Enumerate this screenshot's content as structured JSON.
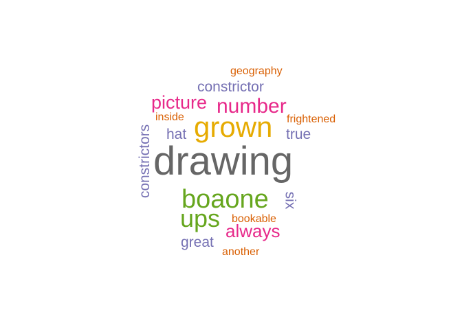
{
  "word_cloud": {
    "words": [
      {
        "text": "drawing",
        "color": "#666666"
      },
      {
        "text": "grown",
        "color": "#E6AB02"
      },
      {
        "text": "boaone",
        "color": "#66A61E"
      },
      {
        "text": "number",
        "color": "#E7298A"
      },
      {
        "text": "ups",
        "color": "#66A61E"
      },
      {
        "text": "picture",
        "color": "#E7298A"
      },
      {
        "text": "always",
        "color": "#E7298A"
      },
      {
        "text": "constrictor",
        "color": "#7570B3"
      },
      {
        "text": "constrictors",
        "color": "#7570B3"
      },
      {
        "text": "hat",
        "color": "#7570B3"
      },
      {
        "text": "true",
        "color": "#7570B3"
      },
      {
        "text": "great",
        "color": "#7570B3"
      },
      {
        "text": "six",
        "color": "#7570B3"
      },
      {
        "text": "frightened",
        "color": "#D95F02"
      },
      {
        "text": "geography",
        "color": "#D95F02"
      },
      {
        "text": "inside",
        "color": "#D95F02"
      },
      {
        "text": "bookable",
        "color": "#D95F02"
      },
      {
        "text": "another",
        "color": "#D95F02"
      }
    ]
  }
}
